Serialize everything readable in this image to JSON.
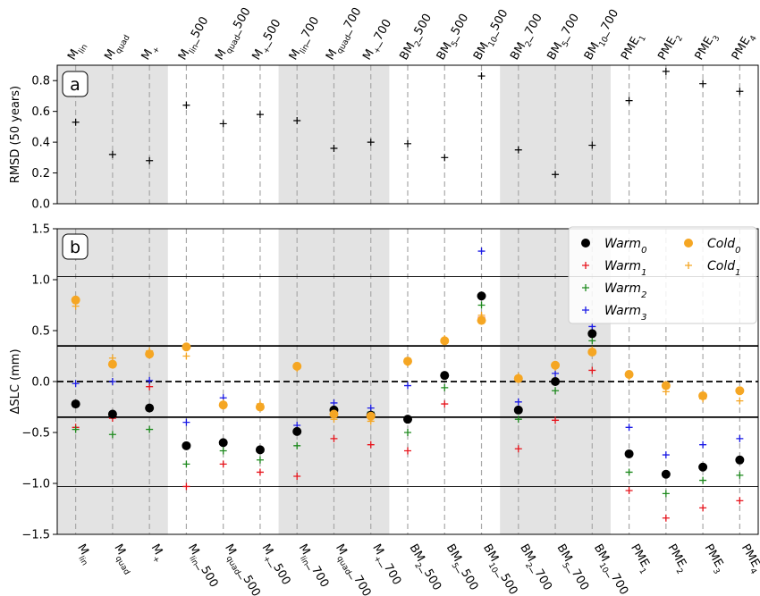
{
  "chart_data": [
    {
      "panel": "a",
      "type": "scatter",
      "panel_label": "a",
      "ylabel": "RMSD (50 years)",
      "ylim": [
        0,
        0.9
      ],
      "yticks": [
        "0.0",
        "0.2",
        "0.4",
        "0.6",
        "0.8"
      ],
      "shaded_groups": [
        [
          0,
          2
        ],
        [
          6,
          8
        ],
        [
          12,
          14
        ]
      ],
      "categories": [
        {
          "base": "M",
          "sub": "lin",
          "suffix": ""
        },
        {
          "base": "M",
          "sub": "quad",
          "suffix": ""
        },
        {
          "base": "M",
          "sub": "+",
          "suffix": ""
        },
        {
          "base": "M",
          "sub": "lin",
          "suffix": "_500"
        },
        {
          "base": "M",
          "sub": "quad",
          "suffix": "_500"
        },
        {
          "base": "M",
          "sub": "+",
          "suffix": "_500"
        },
        {
          "base": "M",
          "sub": "lin",
          "suffix": "_700"
        },
        {
          "base": "M",
          "sub": "quad",
          "suffix": "_700"
        },
        {
          "base": "M",
          "sub": "+",
          "suffix": "_700"
        },
        {
          "base": "BM",
          "sub": "2",
          "suffix": "_500"
        },
        {
          "base": "BM",
          "sub": "5",
          "suffix": "_500"
        },
        {
          "base": "BM",
          "sub": "10",
          "suffix": "_500"
        },
        {
          "base": "BM",
          "sub": "2",
          "suffix": "_700"
        },
        {
          "base": "BM",
          "sub": "5",
          "suffix": "_700"
        },
        {
          "base": "BM",
          "sub": "10",
          "suffix": "_700"
        },
        {
          "base": "PME",
          "sub": "1",
          "suffix": ""
        },
        {
          "base": "PME",
          "sub": "2",
          "suffix": ""
        },
        {
          "base": "PME",
          "sub": "3",
          "suffix": ""
        },
        {
          "base": "PME",
          "sub": "4",
          "suffix": ""
        }
      ],
      "values": [
        0.53,
        0.32,
        0.28,
        0.64,
        0.52,
        0.58,
        0.54,
        0.36,
        0.4,
        0.39,
        0.3,
        0.83,
        0.35,
        0.19,
        0.38,
        0.67,
        0.86,
        0.78,
        0.73
      ]
    },
    {
      "panel": "b",
      "type": "scatter",
      "panel_label": "b",
      "ylabel": "ΔSLC (mm)",
      "ylim": [
        -1.5,
        1.5
      ],
      "yticks": [
        "−1.5",
        "−1.0",
        "−0.5",
        "0.0",
        "0.5",
        "1.0",
        "1.5"
      ],
      "shaded_groups": [
        [
          0,
          2
        ],
        [
          6,
          8
        ],
        [
          12,
          14
        ]
      ],
      "hlines_thin": [
        -1.03,
        1.03
      ],
      "hlines_thick": [
        -0.35,
        0.35
      ],
      "hline_dashed": 0,
      "legend_position": "top-right",
      "series": [
        {
          "name": "Warm",
          "sub": "0",
          "marker": "circle",
          "color": "#000000",
          "values": [
            -0.22,
            -0.32,
            -0.26,
            -0.63,
            -0.6,
            -0.67,
            -0.49,
            -0.28,
            -0.33,
            -0.37,
            0.06,
            0.84,
            -0.28,
            0.0,
            0.47,
            -0.71,
            -0.91,
            -0.84,
            -0.77
          ]
        },
        {
          "name": "Warm",
          "sub": "1",
          "marker": "plus",
          "color": "#e8141c",
          "values": [
            -0.45,
            -0.36,
            -0.05,
            -1.03,
            -0.81,
            -0.89,
            -0.93,
            -0.56,
            -0.62,
            -0.68,
            -0.22,
            0.63,
            -0.66,
            -0.38,
            0.11,
            -1.07,
            -1.34,
            -1.24,
            -1.17
          ]
        },
        {
          "name": "Warm",
          "sub": "2",
          "marker": "plus",
          "color": "#1e8a1e",
          "values": [
            -0.47,
            -0.52,
            -0.47,
            -0.81,
            -0.68,
            -0.77,
            -0.63,
            -0.3,
            -0.3,
            -0.5,
            -0.06,
            0.75,
            -0.37,
            -0.09,
            0.4,
            -0.89,
            -1.1,
            -0.97,
            -0.92
          ]
        },
        {
          "name": "Warm",
          "sub": "3",
          "marker": "plus",
          "color": "#1a1ae6",
          "values": [
            -0.02,
            0.0,
            0.01,
            -0.4,
            -0.16,
            -0.25,
            -0.43,
            -0.21,
            -0.26,
            -0.04,
            0.4,
            1.28,
            -0.2,
            0.08,
            0.54,
            -0.45,
            -0.72,
            -0.62,
            -0.56
          ]
        },
        {
          "name": "Cold",
          "sub": "0",
          "marker": "circle",
          "color": "#f5a623",
          "values": [
            0.8,
            0.17,
            0.27,
            0.34,
            -0.23,
            -0.25,
            0.15,
            -0.32,
            -0.34,
            0.2,
            0.4,
            0.6,
            0.03,
            0.16,
            0.29,
            0.07,
            -0.04,
            -0.14,
            -0.09
          ]
        },
        {
          "name": "Cold",
          "sub": "1",
          "marker": "plus",
          "color": "#f5a623",
          "values": [
            0.74,
            0.23,
            0.3,
            0.25,
            -0.21,
            -0.22,
            0.13,
            -0.37,
            -0.39,
            0.18,
            0.42,
            0.65,
            0.05,
            0.14,
            0.31,
            0.05,
            -0.1,
            -0.17,
            -0.19
          ]
        }
      ]
    }
  ]
}
